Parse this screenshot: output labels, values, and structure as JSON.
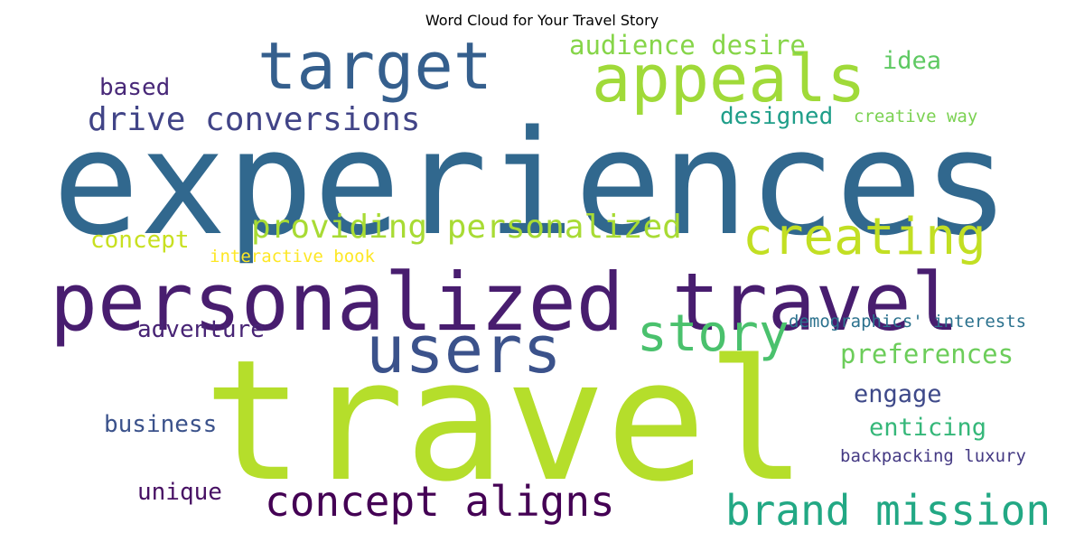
{
  "chart_data": {
    "type": "word_cloud",
    "title": "Word Cloud for Your Travel Story",
    "colormap": "viridis",
    "words": [
      {
        "text": "experiences",
        "weight": 1.0,
        "color": "#31688e"
      },
      {
        "text": "travel",
        "weight": 0.95,
        "color": "#b5de2b"
      },
      {
        "text": "personalized travel",
        "weight": 0.52,
        "color": "#481d6f"
      },
      {
        "text": "target",
        "weight": 0.42,
        "color": "#355f8d"
      },
      {
        "text": "appeals",
        "weight": 0.42,
        "color": "#a0da39"
      },
      {
        "text": "users",
        "weight": 0.42,
        "color": "#3b528b"
      },
      {
        "text": "creating",
        "weight": 0.33,
        "color": "#c2df23"
      },
      {
        "text": "story",
        "weight": 0.33,
        "color": "#4ac16d"
      },
      {
        "text": "concept aligns",
        "weight": 0.27,
        "color": "#440154"
      },
      {
        "text": "brand mission",
        "weight": 0.27,
        "color": "#22a884"
      },
      {
        "text": "drive conversions",
        "weight": 0.22,
        "color": "#414487"
      },
      {
        "text": "providing personalized",
        "weight": 0.22,
        "color": "#a8db34"
      },
      {
        "text": "audience desire",
        "weight": 0.18,
        "color": "#86d549"
      },
      {
        "text": "preferences",
        "weight": 0.18,
        "color": "#6ccd5a"
      },
      {
        "text": "engage",
        "weight": 0.17,
        "color": "#3e4989"
      },
      {
        "text": "enticing",
        "weight": 0.17,
        "color": "#35b779"
      },
      {
        "text": "idea",
        "weight": 0.17,
        "color": "#5ec962"
      },
      {
        "text": "designed",
        "weight": 0.16,
        "color": "#1f9e89"
      },
      {
        "text": "business",
        "weight": 0.16,
        "color": "#3b528b"
      },
      {
        "text": "concept",
        "weight": 0.16,
        "color": "#c8e020"
      },
      {
        "text": "adventure",
        "weight": 0.16,
        "color": "#482475"
      },
      {
        "text": "based",
        "weight": 0.16,
        "color": "#482878"
      },
      {
        "text": "unique",
        "weight": 0.16,
        "color": "#471063"
      },
      {
        "text": "creative way",
        "weight": 0.12,
        "color": "#7ad151"
      },
      {
        "text": "demographics' interests",
        "weight": 0.12,
        "color": "#2c728e"
      },
      {
        "text": "backpacking luxury",
        "weight": 0.12,
        "color": "#443983"
      },
      {
        "text": "interactive book",
        "weight": 0.12,
        "color": "#fde725"
      }
    ]
  }
}
